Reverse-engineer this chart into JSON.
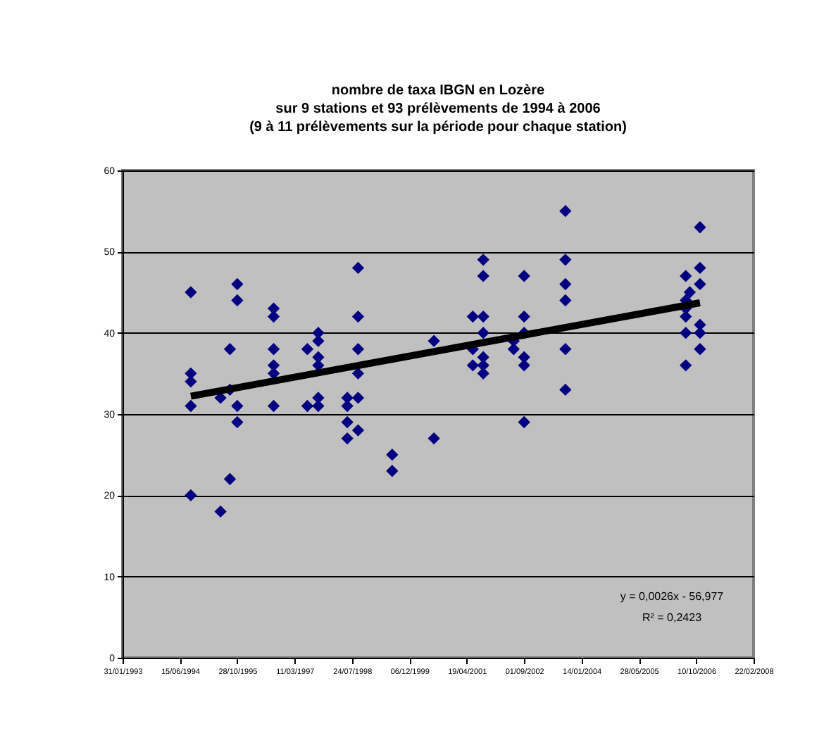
{
  "chart_data": {
    "type": "scatter",
    "title": "nombre de taxa IBGN en Lozère",
    "subtitle": "sur 9 stations et 93 prélèvements de 1994 à 2006\n(9 à 11 prélèvements sur la période pour chaque station)",
    "grid": "y",
    "xlim": [
      "1993-01-31",
      "2008-02-22"
    ],
    "xticks": [
      {
        "value": "1993-01-31",
        "label": "31/01/1993"
      },
      {
        "value": "1994-06-15",
        "label": "15/06/1994"
      },
      {
        "value": "1995-10-28",
        "label": "28/10/1995"
      },
      {
        "value": "1997-03-11",
        "label": "11/03/1997"
      },
      {
        "value": "1998-07-24",
        "label": "24/07/1998"
      },
      {
        "value": "1999-12-06",
        "label": "06/12/1999"
      },
      {
        "value": "2001-04-19",
        "label": "19/04/2001"
      },
      {
        "value": "2002-09-01",
        "label": "01/09/2002"
      },
      {
        "value": "2004-01-14",
        "label": "14/01/2004"
      },
      {
        "value": "2005-05-28",
        "label": "28/05/2005"
      },
      {
        "value": "2006-10-10",
        "label": "10/10/2006"
      },
      {
        "value": "2008-02-22",
        "label": "22/02/2008"
      }
    ],
    "ylim": [
      0,
      60
    ],
    "yticks": [
      0,
      10,
      20,
      30,
      40,
      50,
      60
    ],
    "series": [
      {
        "type": "scatter",
        "color": "#000080",
        "marker": "diamond",
        "x": [
          "1994-09-18",
          "1994-09-18",
          "1994-09-18",
          "1994-09-18",
          "1994-09-18",
          "1995-06-04",
          "1995-06-04",
          "1995-08-25",
          "1995-08-25",
          "1995-08-25",
          "1995-10-28",
          "1995-10-28",
          "1995-10-28",
          "1995-10-28",
          "1996-09-09",
          "1996-09-09",
          "1996-09-09",
          "1996-09-09",
          "1996-09-09",
          "1996-09-09",
          "1997-06-30",
          "1997-06-30",
          "1997-10-03",
          "1997-10-03",
          "1997-10-03",
          "1997-10-03",
          "1997-10-03",
          "1997-10-03",
          "1998-06-13",
          "1998-06-13",
          "1998-06-13",
          "1998-06-13",
          "1998-09-15",
          "1998-09-15",
          "1998-09-15",
          "1998-09-15",
          "1998-09-15",
          "1998-09-15",
          "1999-07-09",
          "1999-07-09",
          "2000-07-07",
          "2000-07-07",
          "2001-06-11",
          "2001-06-11",
          "2001-06-11",
          "2001-09-10",
          "2001-09-10",
          "2001-09-10",
          "2001-09-10",
          "2001-09-10",
          "2001-09-10",
          "2001-09-10",
          "2002-06-02",
          "2002-06-02",
          "2002-09-01",
          "2002-09-01",
          "2002-09-01",
          "2002-09-01",
          "2002-09-01",
          "2002-09-01",
          "2003-08-27",
          "2003-08-27",
          "2003-08-27",
          "2003-08-27",
          "2003-08-27",
          "2003-08-27",
          "2006-07-11",
          "2006-07-11",
          "2006-07-11",
          "2006-07-11",
          "2006-07-11",
          "2006-07-11",
          "2006-08-15",
          "2006-11-12",
          "2006-11-12",
          "2006-11-12",
          "2006-11-12",
          "2006-11-12",
          "2006-11-12"
        ],
        "values": [
          45,
          35,
          34,
          31,
          20,
          32,
          18,
          38,
          33,
          22,
          46,
          44,
          31,
          29,
          43,
          42,
          38,
          36,
          35,
          31,
          38,
          31,
          40,
          39,
          37,
          36,
          32,
          31,
          32,
          31,
          29,
          27,
          48,
          42,
          38,
          35,
          32,
          28,
          25,
          23,
          39,
          27,
          42,
          38,
          36,
          49,
          47,
          42,
          40,
          37,
          36,
          35,
          39,
          38,
          47,
          42,
          40,
          37,
          36,
          29,
          55,
          49,
          46,
          44,
          38,
          33,
          47,
          44,
          43,
          42,
          40,
          36,
          45,
          53,
          48,
          46,
          41,
          40,
          38
        ]
      },
      {
        "type": "line",
        "color": "#000000",
        "x": [
          "1994-09-18",
          "2006-11-12"
        ],
        "values": [
          32.2,
          43.7
        ]
      }
    ],
    "annotations": [
      "y = 0,0026x - 56,977",
      "R² = 0,2423"
    ]
  }
}
